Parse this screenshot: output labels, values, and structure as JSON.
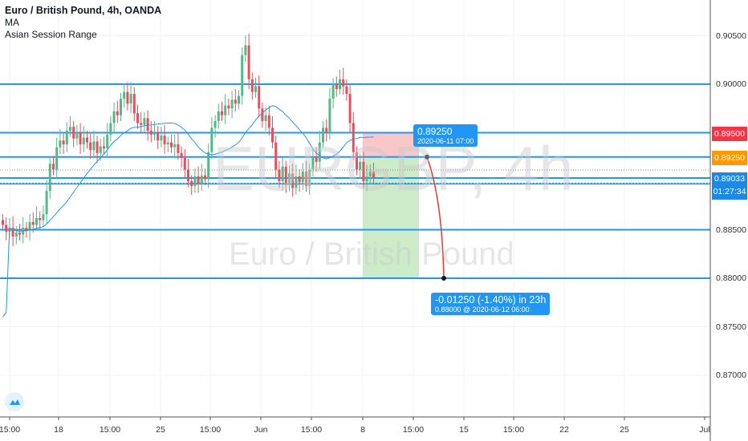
{
  "legend": {
    "title": "Euro / British Pound, 4h, OANDA",
    "indicator1": "MA",
    "indicator2": "Asian Session Range"
  },
  "watermark": {
    "symbol": "EURGBP, 4h",
    "name": "Euro / British Pound"
  },
  "price_axis": {
    "ticks": [
      "0.90500",
      "0.90000",
      "0.89500",
      "0.89250",
      "0.89033",
      "0.88500",
      "0.88000",
      "0.87500",
      "0.87000"
    ],
    "tags": [
      {
        "label": "0.89500",
        "color": "#f23645"
      },
      {
        "label": "0.89250",
        "color": "#ff9800"
      },
      {
        "label": "0.89033",
        "color": "#1e88e5"
      }
    ],
    "countdown": "01:27:34"
  },
  "time_axis": {
    "ticks": [
      "15:00",
      "18",
      "15:00",
      "25",
      "15:00",
      "Jun",
      "15:00",
      "8",
      "15:00",
      "15",
      "15:00",
      "22",
      "25",
      "Jul"
    ]
  },
  "position": {
    "entry_label": "0.89250",
    "entry_time": "2020-06-11 07:00",
    "result": "-0.01250 (-1.40%) in 23h",
    "result_detail": "0.88000 @ 2020-06-12  06:00",
    "entry": 0.8925,
    "stop": 0.895,
    "target": 0.88
  },
  "levels": [
    0.9,
    0.895,
    0.8925,
    0.89033,
    0.8898,
    0.885,
    0.88
  ],
  "colors": {
    "up": "#53b987",
    "down": "#eb4d5c",
    "line": "#2196f3",
    "stop_zone": "#f8c8c8",
    "target_zone": "#cdebc9"
  },
  "chart_data": {
    "type": "candlestick",
    "timeframe": "4h",
    "closes": [
      0.8855,
      0.8848,
      0.8852,
      0.8843,
      0.8847,
      0.8845,
      0.8852,
      0.8849,
      0.8858,
      0.8855,
      0.8862,
      0.886,
      0.8866,
      0.889,
      0.8918,
      0.8912,
      0.8935,
      0.8942,
      0.8938,
      0.8952,
      0.8956,
      0.8944,
      0.895,
      0.8938,
      0.8945,
      0.894,
      0.8932,
      0.8941,
      0.8929,
      0.8936,
      0.8934,
      0.8948,
      0.896,
      0.8972,
      0.8968,
      0.8985,
      0.8992,
      0.898,
      0.899,
      0.897,
      0.896,
      0.8958,
      0.8965,
      0.8952,
      0.8948,
      0.895,
      0.8942,
      0.8947,
      0.8938,
      0.894,
      0.8935,
      0.8938,
      0.8929,
      0.8924,
      0.8912,
      0.89,
      0.8895,
      0.8905,
      0.8898,
      0.8906,
      0.8902,
      0.893,
      0.8955,
      0.8962,
      0.8972,
      0.8968,
      0.8978,
      0.8975,
      0.8984,
      0.898,
      0.8988,
      0.903,
      0.904,
      0.9005,
      0.8992,
      0.8998,
      0.8975,
      0.8962,
      0.8968,
      0.8955,
      0.894,
      0.8912,
      0.89,
      0.8915,
      0.8896,
      0.8908,
      0.8893,
      0.8905,
      0.8899,
      0.891,
      0.8895,
      0.8912,
      0.8925,
      0.892,
      0.894,
      0.8955,
      0.895,
      0.8985,
      0.9,
      0.8995,
      0.9005,
      0.8998,
      0.899,
      0.896,
      0.893,
      0.8912,
      0.892,
      0.89,
      0.8905,
      0.891,
      0.8903
    ]
  }
}
